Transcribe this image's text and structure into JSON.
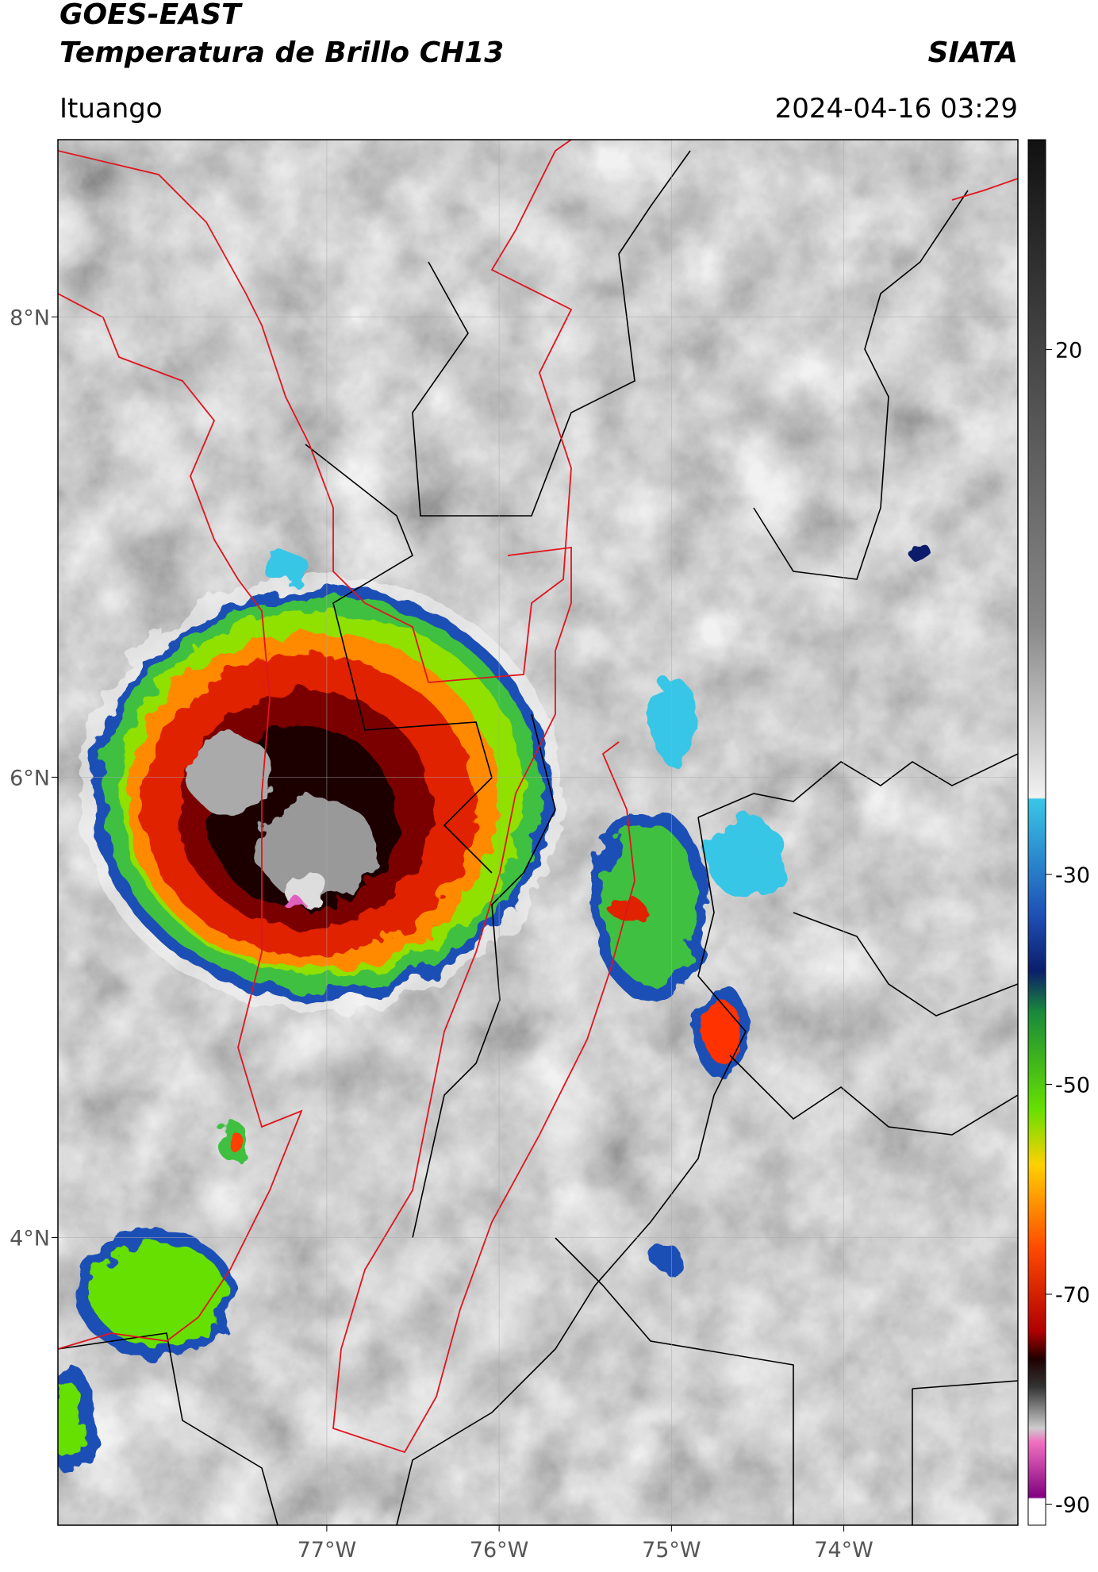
{
  "header": {
    "title": "GOES-EAST",
    "subtitle": "Temperatura de Brillo CH13",
    "brand": "SIATA",
    "location": "Ituango",
    "timestamp": "2024-04-16 03:29"
  },
  "map": {
    "xlim": [
      -78.56,
      -72.99
    ],
    "ylim": [
      2.75,
      8.77
    ],
    "xticks": [
      {
        "value": -77,
        "label": "77°W"
      },
      {
        "value": -76,
        "label": "76°W"
      },
      {
        "value": -75,
        "label": "75°W"
      },
      {
        "value": -74,
        "label": "74°W"
      }
    ],
    "yticks": [
      {
        "value": 8,
        "label": "8°N"
      },
      {
        "value": 6,
        "label": "6°N"
      },
      {
        "value": 4,
        "label": "4°N"
      }
    ]
  },
  "colorbar": {
    "lim": [
      -92,
      40
    ],
    "ticks": [
      20,
      -30,
      -50,
      -70,
      -90
    ]
  }
}
